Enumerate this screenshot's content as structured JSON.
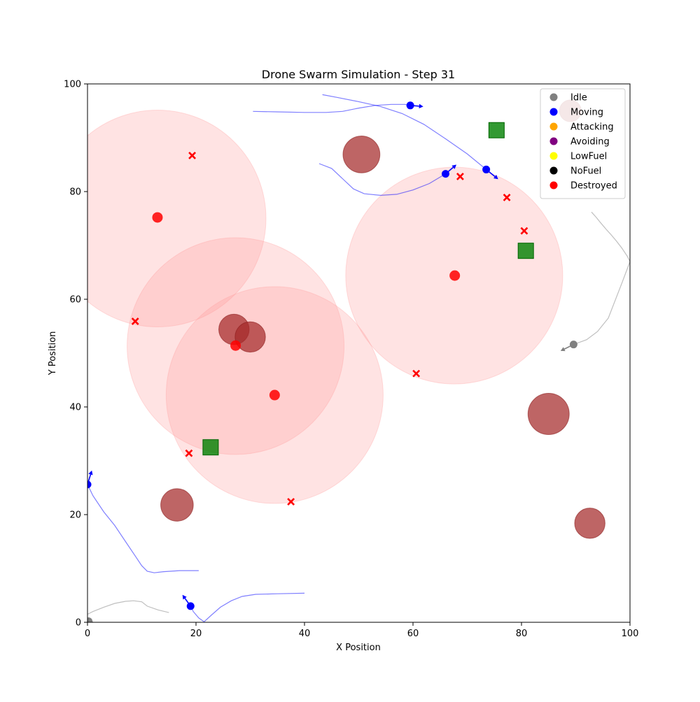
{
  "chart_data": {
    "type": "scatter",
    "title": "Drone Swarm Simulation - Step 31",
    "xlabel": "X Position",
    "ylabel": "Y Position",
    "xlim": [
      0,
      100
    ],
    "ylim": [
      0,
      100
    ],
    "xticks": [
      "0",
      "20",
      "40",
      "60",
      "80",
      "100"
    ],
    "yticks": [
      "0",
      "20",
      "40",
      "60",
      "80",
      "100"
    ],
    "grid": false,
    "legend_position": "top-right",
    "legend": [
      {
        "label": "Idle",
        "color": "#808080"
      },
      {
        "label": "Moving",
        "color": "#0000ff"
      },
      {
        "label": "Attacking",
        "color": "#ffa500"
      },
      {
        "label": "Avoiding",
        "color": "#800080"
      },
      {
        "label": "LowFuel",
        "color": "#ffff00"
      },
      {
        "label": "NoFuel",
        "color": "#000000"
      },
      {
        "label": "Destroyed",
        "color": "#ff0000"
      }
    ],
    "threat_zones": [
      {
        "x": 12.9,
        "y": 75.0,
        "radius": 20
      },
      {
        "x": 27.3,
        "y": 51.3,
        "radius": 20
      },
      {
        "x": 34.5,
        "y": 42.2,
        "radius": 20
      },
      {
        "x": 67.6,
        "y": 64.4,
        "radius": 20
      }
    ],
    "threat_centers": [
      {
        "x": 12.9,
        "y": 75.2
      },
      {
        "x": 27.3,
        "y": 51.4
      },
      {
        "x": 34.5,
        "y": 42.2
      },
      {
        "x": 67.7,
        "y": 64.4
      }
    ],
    "obstacles": [
      {
        "x": 50.5,
        "y": 86.9,
        "radius": 3.4
      },
      {
        "x": 27.0,
        "y": 54.4,
        "radius": 2.8
      },
      {
        "x": 30.0,
        "y": 53.0,
        "radius": 2.8
      },
      {
        "x": 85.0,
        "y": 38.7,
        "radius": 3.8
      },
      {
        "x": 16.5,
        "y": 21.8,
        "radius": 3.0
      },
      {
        "x": 92.6,
        "y": 18.4,
        "radius": 2.8
      },
      {
        "x": 89.0,
        "y": 95.0,
        "radius": 2.0
      }
    ],
    "targets": [
      {
        "x": 75.4,
        "y": 91.4
      },
      {
        "x": 80.8,
        "y": 69.0
      },
      {
        "x": 22.7,
        "y": 32.5
      }
    ],
    "destroyed_drones": [
      {
        "x": 19.3,
        "y": 86.7
      },
      {
        "x": 8.8,
        "y": 55.9
      },
      {
        "x": 68.7,
        "y": 82.8
      },
      {
        "x": 77.3,
        "y": 78.9
      },
      {
        "x": 80.5,
        "y": 72.7
      },
      {
        "x": 60.6,
        "y": 46.2
      },
      {
        "x": 18.7,
        "y": 31.4
      },
      {
        "x": 37.5,
        "y": 22.4
      }
    ],
    "moving_drones": [
      {
        "x": 59.5,
        "y": 96.0,
        "dx": 2.4,
        "dy": -0.2
      },
      {
        "x": 66.0,
        "y": 83.3,
        "dx": 2.0,
        "dy": 1.7
      },
      {
        "x": 73.5,
        "y": 84.1,
        "dx": 2.2,
        "dy": -1.8
      },
      {
        "x": 0.0,
        "y": 25.6,
        "dx": 0.8,
        "dy": 2.6
      },
      {
        "x": 19.0,
        "y": 3.0,
        "dx": -1.5,
        "dy": 2.1
      }
    ],
    "idle_drones": [
      {
        "x": 89.6,
        "y": 51.6,
        "dx": -2.4,
        "dy": -1.2
      },
      {
        "x": 0.2,
        "y": 0.2,
        "dx": 1.0,
        "dy": -0.3
      }
    ],
    "moving_paths": [
      {
        "x": [
          30.5,
          35.0,
          40.0,
          44.0,
          47.0,
          50.0,
          53.0,
          56.0,
          58.5,
          59.5
        ],
        "y": [
          94.9,
          94.8,
          94.7,
          94.7,
          94.9,
          95.5,
          96.0,
          96.2,
          96.2,
          96.0
        ]
      },
      {
        "x": [
          43.3,
          46.0,
          50.0,
          54.0,
          58.0,
          62.0,
          66.0,
          70.0,
          73.5
        ],
        "y": [
          98.0,
          97.5,
          96.7,
          95.8,
          94.5,
          92.5,
          89.8,
          87.0,
          84.1
        ]
      },
      {
        "x": [
          42.7,
          45.0,
          47.0,
          49.0,
          51.0,
          54.0,
          57.0,
          60.0,
          63.0,
          66.0
        ],
        "y": [
          85.2,
          84.3,
          82.4,
          80.5,
          79.6,
          79.3,
          79.5,
          80.3,
          81.5,
          83.3
        ]
      },
      {
        "x": [
          20.5,
          17.0,
          14.0,
          12.3,
          11.0,
          10.0,
          9.0,
          7.0,
          5.0,
          3.0,
          1.0,
          0.0
        ],
        "y": [
          9.6,
          9.6,
          9.4,
          9.2,
          9.5,
          10.5,
          12.0,
          15.0,
          18.0,
          20.5,
          23.5,
          25.6
        ]
      },
      {
        "x": [
          40.0,
          35.0,
          31.0,
          28.5,
          26.5,
          24.5,
          22.8,
          21.5,
          20.5,
          19.5,
          19.0
        ],
        "y": [
          5.4,
          5.3,
          5.2,
          4.8,
          4.0,
          2.8,
          1.3,
          0.1,
          0.8,
          2.0,
          3.0
        ]
      }
    ],
    "idle_paths": [
      {
        "x": [
          92.9,
          93.8,
          94.6,
          95.6,
          96.5,
          97.5,
          98.5,
          99.5,
          100.0,
          98.5,
          96.0,
          94.0,
          92.0,
          89.6
        ],
        "y": [
          76.2,
          75.2,
          74.2,
          73.0,
          72.0,
          70.8,
          69.5,
          68.0,
          67.0,
          63.0,
          56.5,
          54.0,
          52.5,
          51.6
        ]
      },
      {
        "x": [
          15.0,
          13.0,
          11.0,
          10.0,
          8.5,
          7.0,
          5.0,
          3.0,
          1.0,
          0.0
        ],
        "y": [
          1.8,
          2.3,
          3.0,
          3.8,
          4.0,
          3.9,
          3.5,
          2.8,
          2.0,
          1.5
        ]
      }
    ]
  }
}
